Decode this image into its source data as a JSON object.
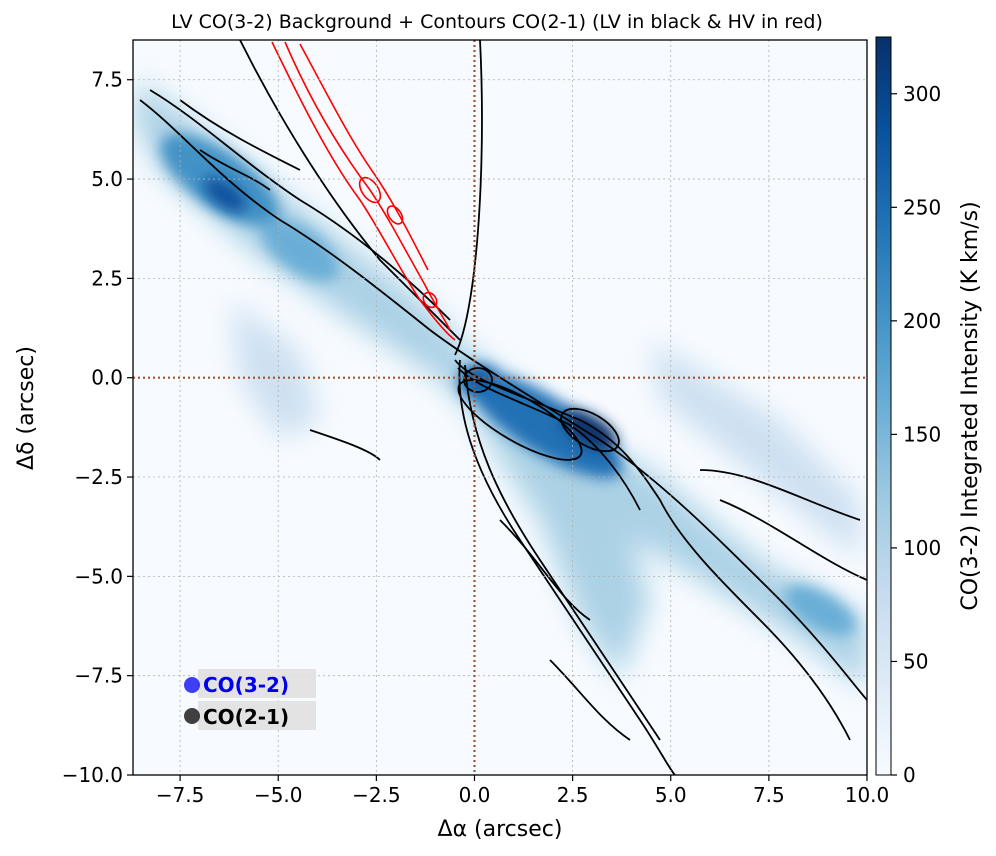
{
  "chart_data": {
    "type": "heatmap",
    "title": "LV CO(3-2) Background + Contours CO(2-1) (LV in black & HV in red)",
    "xlabel": "Δα (arcsec)",
    "ylabel": "Δδ (arcsec)",
    "xlim": [
      -8.7,
      10.0
    ],
    "ylim": [
      -10.0,
      8.5
    ],
    "x_ticks": [
      -7.5,
      -5.0,
      -2.5,
      0.0,
      2.5,
      5.0,
      7.5,
      10.0
    ],
    "x_tick_labels": [
      "−7.5",
      "−5.0",
      "−2.5",
      "0.0",
      "2.5",
      "5.0",
      "7.5",
      "10.0"
    ],
    "y_ticks": [
      7.5,
      5.0,
      2.5,
      0.0,
      -2.5,
      -5.0,
      -7.5,
      -10.0
    ],
    "y_tick_labels": [
      "7.5",
      "5.0",
      "2.5",
      "0.0",
      "−2.5",
      "−5.0",
      "−7.5",
      "−10.0"
    ],
    "grid": true,
    "colorbar": {
      "label": "CO(3-2) Integrated Intensity (K km/s)",
      "range": [
        0,
        325
      ],
      "ticks": [
        0,
        50,
        100,
        150,
        200,
        250,
        300
      ],
      "tick_labels": [
        "0",
        "50",
        "100",
        "150",
        "200",
        "250",
        "300"
      ],
      "colormap": "Blues"
    },
    "background_peaks": [
      {
        "x": -6.2,
        "y": 4.6,
        "intensity": 270
      },
      {
        "x": -4.0,
        "y": 3.0,
        "intensity": 160
      },
      {
        "x": 0.0,
        "y": 0.0,
        "intensity": 300
      },
      {
        "x": 1.5,
        "y": -0.8,
        "intensity": 260
      },
      {
        "x": 2.8,
        "y": -1.4,
        "intensity": 320
      },
      {
        "x": 4.0,
        "y": -3.0,
        "intensity": 200
      },
      {
        "x": 6.5,
        "y": -4.5,
        "intensity": 130
      },
      {
        "x": 9.5,
        "y": -6.3,
        "intensity": 140
      }
    ],
    "reference_lines": [
      {
        "axis": "x",
        "value": 0.0,
        "style": "dotted",
        "color": "#a0522d"
      },
      {
        "axis": "y",
        "value": 0.0,
        "style": "dotted",
        "color": "#a0522d"
      }
    ],
    "legend": {
      "placement": "lower-left",
      "entries": [
        {
          "label": "CO(3-2)",
          "color": "#0000ee"
        },
        {
          "label": "CO(2-1)",
          "color": "#111111"
        }
      ]
    },
    "contour_colors": {
      "lv": "#000000",
      "hv": "#ff0000"
    }
  }
}
